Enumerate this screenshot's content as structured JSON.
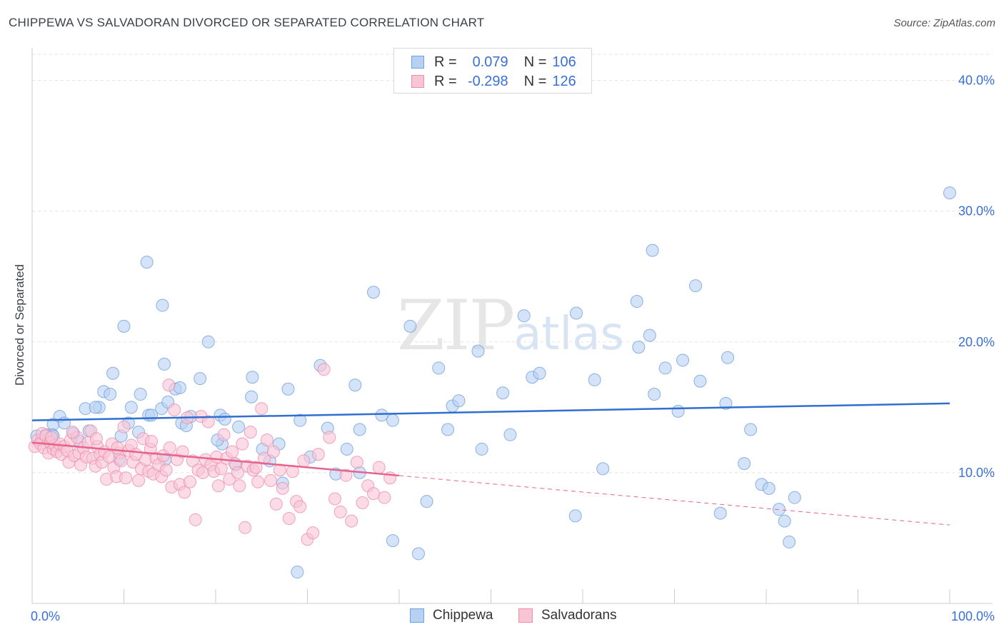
{
  "header": {
    "title": "CHIPPEWA VS SALVADORAN DIVORCED OR SEPARATED CORRELATION CHART",
    "source": "Source: ZipAtlas.com"
  },
  "watermark": {
    "zip": "ZIP",
    "atlas": "atlas"
  },
  "legend": {
    "rows": [
      {
        "r_label": "R =",
        "r_value": "0.079",
        "n_label": "N =",
        "n_value": "106",
        "color": "#6fa0e0",
        "fill": "#b8d0f2"
      },
      {
        "r_label": "R =",
        "r_value": "-0.298",
        "n_label": "N =",
        "n_value": "126",
        "color": "#f08cab",
        "fill": "#f8c5d5"
      }
    ]
  },
  "bottom_legend": {
    "series1": "Chippewa",
    "series2": "Salvadorans"
  },
  "chart_data": {
    "type": "scatter",
    "title": "CHIPPEWA VS SALVADORAN DIVORCED OR SEPARATED CORRELATION CHART",
    "ylabel": "Divorced or Separated",
    "xlabel": "",
    "xlim": [
      0,
      100
    ],
    "ylim": [
      0,
      42
    ],
    "x_tick_labels": [
      "0.0%",
      "100.0%"
    ],
    "y_ticks": [
      10,
      20,
      30,
      40
    ],
    "y_tick_labels": [
      "10.0%",
      "20.0%",
      "30.0%",
      "40.0%"
    ],
    "grid": true,
    "legend_placement": "top-center",
    "series": [
      {
        "name": "Chippewa",
        "color": "#6fa0e0",
        "fill": "#b8d0f2",
        "trend": {
          "x": [
            0,
            100
          ],
          "y": [
            14.0,
            15.3
          ],
          "dashed_from": null
        },
        "points": [
          [
            0.5,
            12.8
          ],
          [
            1.0,
            12.5
          ],
          [
            1.5,
            12.9
          ],
          [
            2.3,
            13.7
          ],
          [
            2.2,
            12.9
          ],
          [
            3.0,
            14.3
          ],
          [
            3.5,
            13.8
          ],
          [
            4.5,
            13.0
          ],
          [
            5.2,
            12.4
          ],
          [
            5.8,
            14.9
          ],
          [
            6.2,
            13.2
          ],
          [
            7.3,
            15.0
          ],
          [
            7.8,
            16.2
          ],
          [
            8.5,
            16.0
          ],
          [
            8.8,
            17.6
          ],
          [
            9.5,
            11.0
          ],
          [
            9.7,
            12.8
          ],
          [
            10.0,
            21.2
          ],
          [
            10.5,
            13.8
          ],
          [
            10.8,
            15.0
          ],
          [
            11.6,
            13.1
          ],
          [
            11.8,
            16.0
          ],
          [
            12.7,
            14.4
          ],
          [
            13.0,
            14.4
          ],
          [
            12.5,
            26.1
          ],
          [
            14.1,
            14.9
          ],
          [
            14.4,
            18.3
          ],
          [
            14.5,
            11.0
          ],
          [
            14.8,
            15.4
          ],
          [
            14.2,
            22.8
          ],
          [
            15.6,
            16.4
          ],
          [
            16.3,
            13.8
          ],
          [
            16.8,
            13.6
          ],
          [
            17.3,
            14.3
          ],
          [
            16.1,
            16.5
          ],
          [
            18.3,
            17.2
          ],
          [
            19.2,
            20.0
          ],
          [
            20.5,
            14.4
          ],
          [
            20.7,
            12.2
          ],
          [
            20.2,
            12.5
          ],
          [
            21.0,
            14.1
          ],
          [
            22.5,
            13.5
          ],
          [
            22.2,
            10.6
          ],
          [
            23.9,
            15.8
          ],
          [
            24.0,
            17.3
          ],
          [
            25.1,
            11.8
          ],
          [
            25.9,
            10.9
          ],
          [
            26.9,
            12.2
          ],
          [
            27.3,
            9.2
          ],
          [
            27.9,
            16.4
          ],
          [
            28.9,
            2.4
          ],
          [
            29.2,
            14.0
          ],
          [
            30.3,
            11.2
          ],
          [
            31.4,
            18.2
          ],
          [
            32.2,
            13.4
          ],
          [
            33.1,
            9.9
          ],
          [
            34.3,
            11.8
          ],
          [
            35.2,
            16.7
          ],
          [
            35.7,
            13.3
          ],
          [
            35.7,
            10.0
          ],
          [
            37.2,
            23.8
          ],
          [
            38.1,
            14.4
          ],
          [
            39.3,
            4.8
          ],
          [
            39.3,
            14.0
          ],
          [
            41.2,
            21.2
          ],
          [
            43.0,
            7.8
          ],
          [
            42.1,
            3.8
          ],
          [
            44.3,
            18.0
          ],
          [
            45.3,
            13.3
          ],
          [
            45.8,
            15.1
          ],
          [
            46.5,
            15.5
          ],
          [
            48.6,
            19.3
          ],
          [
            49.0,
            11.8
          ],
          [
            51.3,
            16.1
          ],
          [
            52.1,
            12.9
          ],
          [
            53.6,
            22.0
          ],
          [
            54.5,
            17.3
          ],
          [
            55.3,
            17.6
          ],
          [
            59.3,
            22.2
          ],
          [
            59.2,
            6.7
          ],
          [
            61.3,
            17.1
          ],
          [
            62.2,
            10.3
          ],
          [
            66.1,
            19.6
          ],
          [
            65.9,
            23.1
          ],
          [
            67.6,
            27.0
          ],
          [
            67.8,
            16.0
          ],
          [
            67.3,
            20.5
          ],
          [
            69.0,
            18.0
          ],
          [
            70.4,
            14.7
          ],
          [
            70.9,
            18.6
          ],
          [
            72.3,
            24.3
          ],
          [
            72.8,
            17.0
          ],
          [
            75.0,
            6.9
          ],
          [
            75.6,
            15.3
          ],
          [
            75.8,
            18.8
          ],
          [
            77.6,
            10.7
          ],
          [
            78.3,
            13.3
          ],
          [
            79.5,
            9.1
          ],
          [
            80.3,
            8.8
          ],
          [
            81.4,
            7.2
          ],
          [
            82.0,
            6.3
          ],
          [
            82.5,
            4.7
          ],
          [
            83.1,
            8.1
          ],
          [
            100.0,
            31.4
          ],
          [
            6.9,
            15.0
          ],
          [
            2.3,
            12.8
          ]
        ]
      },
      {
        "name": "Salvadorans",
        "color": "#f08cab",
        "fill": "#f8c5d5",
        "trend": {
          "x": [
            0,
            100
          ],
          "y": [
            12.3,
            6.0
          ],
          "dashed_from": 40
        },
        "points": [
          [
            0.3,
            12.0
          ],
          [
            0.6,
            12.5
          ],
          [
            0.9,
            12.2
          ],
          [
            1.1,
            13.0
          ],
          [
            1.3,
            11.9
          ],
          [
            1.5,
            12.8
          ],
          [
            1.8,
            11.5
          ],
          [
            2.0,
            12.3
          ],
          [
            2.3,
            11.8
          ],
          [
            2.5,
            12.1
          ],
          [
            2.7,
            11.6
          ],
          [
            3.0,
            12.2
          ],
          [
            3.2,
            11.4
          ],
          [
            3.5,
            12.0
          ],
          [
            3.8,
            11.7
          ],
          [
            4.0,
            10.8
          ],
          [
            4.2,
            12.5
          ],
          [
            4.6,
            11.3
          ],
          [
            4.9,
            12.7
          ],
          [
            5.1,
            11.5
          ],
          [
            5.3,
            10.6
          ],
          [
            5.6,
            11.9
          ],
          [
            5.9,
            11.2
          ],
          [
            6.1,
            12.3
          ],
          [
            6.4,
            13.2
          ],
          [
            6.6,
            11.1
          ],
          [
            6.9,
            10.5
          ],
          [
            7.1,
            12.0
          ],
          [
            7.4,
            11.4
          ],
          [
            7.6,
            10.8
          ],
          [
            7.9,
            11.6
          ],
          [
            8.1,
            9.5
          ],
          [
            8.4,
            11.2
          ],
          [
            8.7,
            12.2
          ],
          [
            8.9,
            10.4
          ],
          [
            9.2,
            9.7
          ],
          [
            9.5,
            11.5
          ],
          [
            9.7,
            10.9
          ],
          [
            10.0,
            13.5
          ],
          [
            10.2,
            9.6
          ],
          [
            10.5,
            11.7
          ],
          [
            10.8,
            12.1
          ],
          [
            11.0,
            10.8
          ],
          [
            11.3,
            11.4
          ],
          [
            11.6,
            9.4
          ],
          [
            11.9,
            10.3
          ],
          [
            12.1,
            12.6
          ],
          [
            12.4,
            11.0
          ],
          [
            12.7,
            10.1
          ],
          [
            12.9,
            11.8
          ],
          [
            13.2,
            9.9
          ],
          [
            13.5,
            11.1
          ],
          [
            13.8,
            10.6
          ],
          [
            14.1,
            9.7
          ],
          [
            14.3,
            11.3
          ],
          [
            14.6,
            10.2
          ],
          [
            14.9,
            16.7
          ],
          [
            15.2,
            8.9
          ],
          [
            15.5,
            14.8
          ],
          [
            15.8,
            11.0
          ],
          [
            16.1,
            9.1
          ],
          [
            16.4,
            11.6
          ],
          [
            16.6,
            8.5
          ],
          [
            16.9,
            14.2
          ],
          [
            17.2,
            9.3
          ],
          [
            17.5,
            10.9
          ],
          [
            17.8,
            6.4
          ],
          [
            18.1,
            10.2
          ],
          [
            18.4,
            14.3
          ],
          [
            18.6,
            10.0
          ],
          [
            18.9,
            11.0
          ],
          [
            19.2,
            13.9
          ],
          [
            19.5,
            10.6
          ],
          [
            19.8,
            10.1
          ],
          [
            20.1,
            11.2
          ],
          [
            20.3,
            9.0
          ],
          [
            20.6,
            10.3
          ],
          [
            20.9,
            12.9
          ],
          [
            21.2,
            11.1
          ],
          [
            21.5,
            9.5
          ],
          [
            21.8,
            11.6
          ],
          [
            22.1,
            10.7
          ],
          [
            22.4,
            10.0
          ],
          [
            22.6,
            9.0
          ],
          [
            22.9,
            12.2
          ],
          [
            23.2,
            5.8
          ],
          [
            23.5,
            10.5
          ],
          [
            23.8,
            13.1
          ],
          [
            24.1,
            10.2
          ],
          [
            24.4,
            10.4
          ],
          [
            24.6,
            9.3
          ],
          [
            25.0,
            14.9
          ],
          [
            25.3,
            11.1
          ],
          [
            25.6,
            12.5
          ],
          [
            26.0,
            9.4
          ],
          [
            26.3,
            11.6
          ],
          [
            26.6,
            7.6
          ],
          [
            27.0,
            10.2
          ],
          [
            27.3,
            8.8
          ],
          [
            28.0,
            6.5
          ],
          [
            28.4,
            10.1
          ],
          [
            28.8,
            7.8
          ],
          [
            29.2,
            7.4
          ],
          [
            29.6,
            10.9
          ],
          [
            30.0,
            4.9
          ],
          [
            30.6,
            5.4
          ],
          [
            31.2,
            11.4
          ],
          [
            31.8,
            17.9
          ],
          [
            32.4,
            12.7
          ],
          [
            33.0,
            8.0
          ],
          [
            33.6,
            7.0
          ],
          [
            34.2,
            9.8
          ],
          [
            34.8,
            6.3
          ],
          [
            35.4,
            10.8
          ],
          [
            36.0,
            7.7
          ],
          [
            36.6,
            9.0
          ],
          [
            37.2,
            8.4
          ],
          [
            37.8,
            10.4
          ],
          [
            38.4,
            8.1
          ],
          [
            39.0,
            9.6
          ],
          [
            2.1,
            12.7
          ],
          [
            4.4,
            13.1
          ],
          [
            7.0,
            12.6
          ],
          [
            9.3,
            11.9
          ],
          [
            13.0,
            12.4
          ],
          [
            15.0,
            11.9
          ]
        ]
      }
    ]
  }
}
